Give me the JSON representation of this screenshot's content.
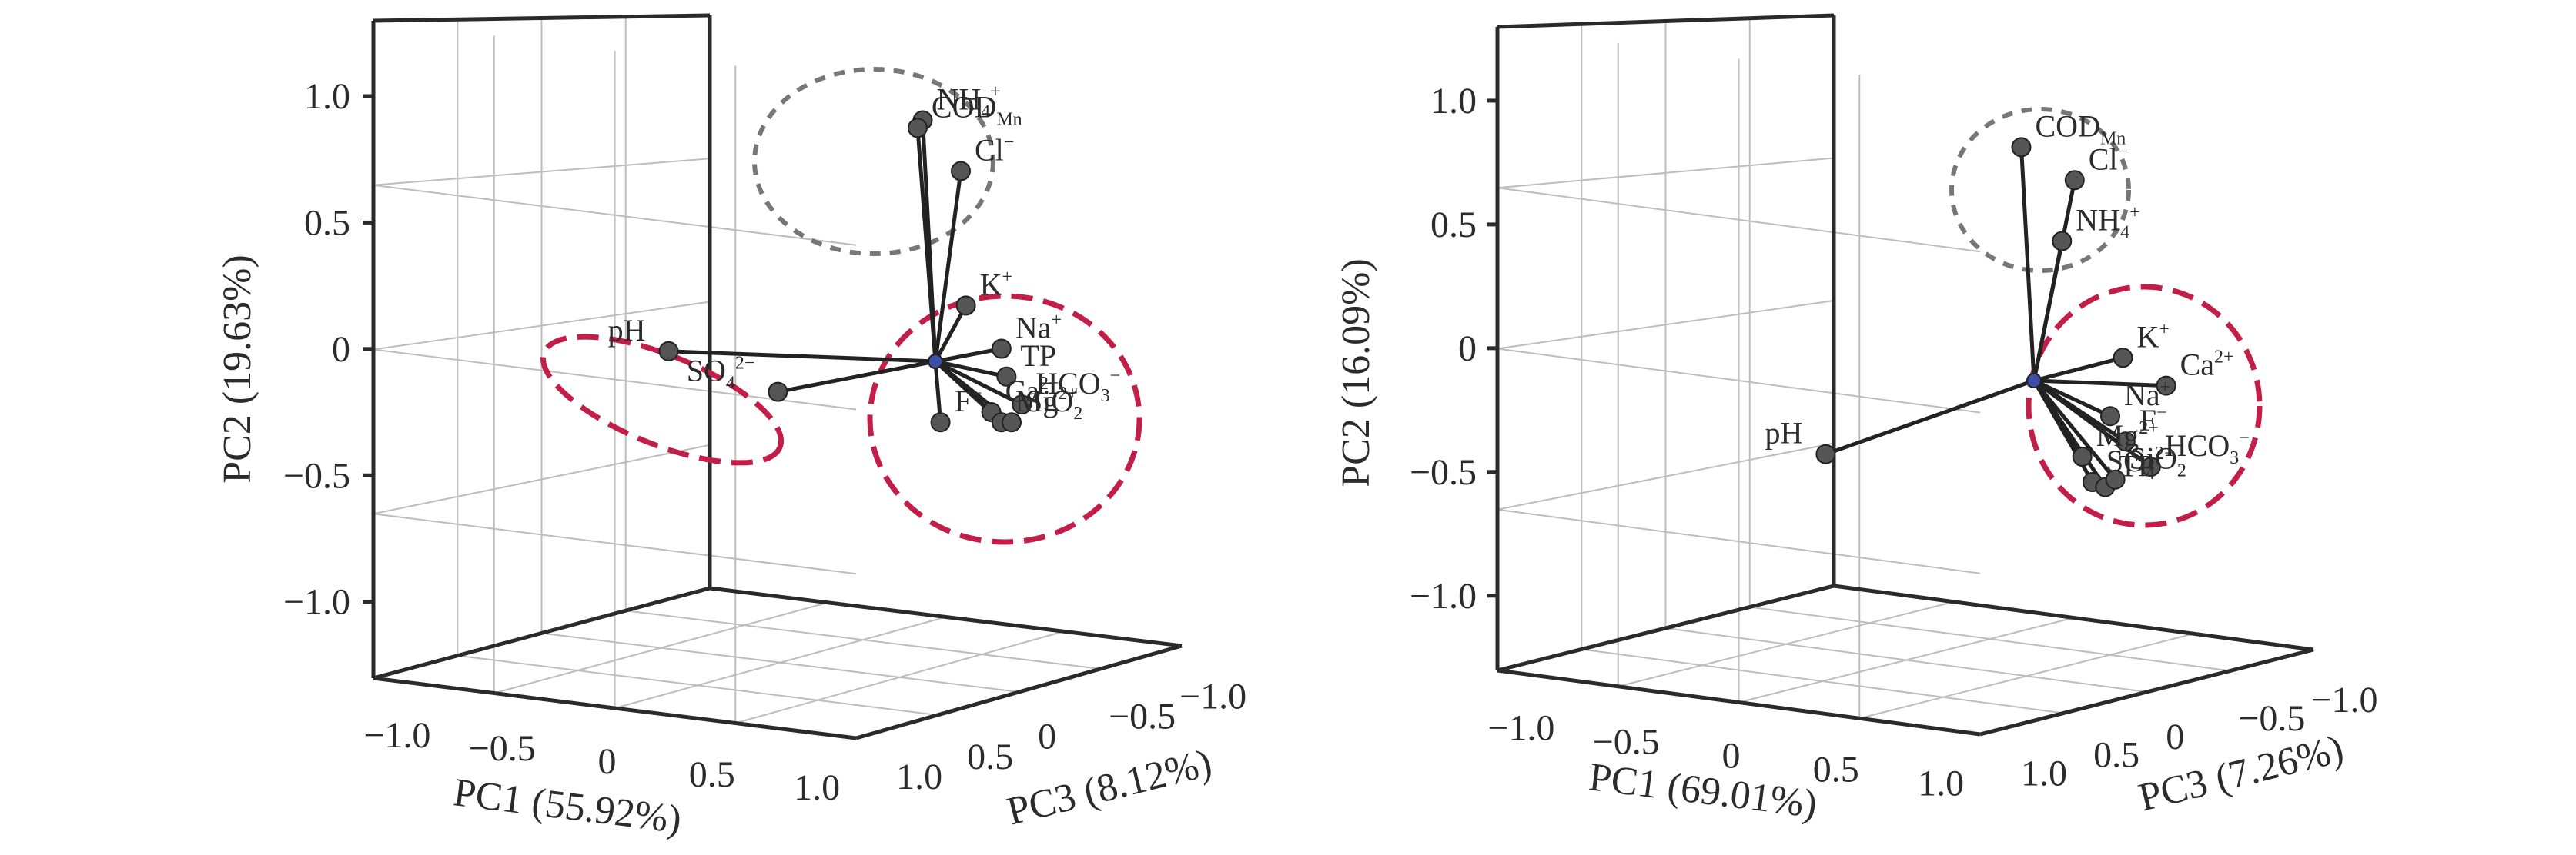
{
  "chart_data": [
    {
      "type": "scatter",
      "projection": "3d-biplot",
      "xlabel": "PC1 (55.92%)",
      "ylabel": "PC2 (19.63%)",
      "zlabel": "PC3 (8.12%)",
      "xlim": [
        -1.0,
        1.0
      ],
      "ylim": [
        -1.0,
        1.0
      ],
      "zlim": [
        -1.0,
        1.0
      ],
      "ticks": {
        "x": [
          "−1.0",
          "−0.5",
          "0",
          "0.5",
          "1.0"
        ],
        "y": [
          "−1.0",
          "−0.5",
          "0",
          "0.5",
          "1.0"
        ],
        "z": [
          "1.0",
          "0.5",
          "0",
          "−0.5",
          "−1.0"
        ]
      },
      "grid": true,
      "points": [
        {
          "label": "NH",
          "sup": "+",
          "sub": "4",
          "x": -0.05,
          "y": 0.95,
          "z": 0.0
        },
        {
          "label": "COD",
          "sub": "Mn",
          "x": -0.07,
          "y": 0.92,
          "z": 0.0
        },
        {
          "label": "Cl",
          "sup": "−",
          "x": 0.1,
          "y": 0.75,
          "z": 0.0
        },
        {
          "label": "K",
          "sup": "+",
          "x": 0.12,
          "y": 0.22,
          "z": 0.0
        },
        {
          "label": "Na",
          "sup": "+",
          "x": 0.26,
          "y": 0.05,
          "z": 0.0
        },
        {
          "label": "TP",
          "x": 0.28,
          "y": -0.06,
          "z": 0.0
        },
        {
          "label": "HCO",
          "sup": "−",
          "sub": "3",
          "x": 0.34,
          "y": -0.17,
          "z": 0.0
        },
        {
          "label": "Ca",
          "sup": "2+",
          "x": 0.22,
          "y": -0.2,
          "z": 0.0
        },
        {
          "label": "Mg",
          "sup": "2+",
          "x": 0.26,
          "y": -0.24,
          "z": 0.0
        },
        {
          "label": "SiO",
          "sub": "2",
          "x": 0.3,
          "y": -0.24,
          "z": 0.0
        },
        {
          "label": "F",
          "sup": "−",
          "x": 0.02,
          "y": -0.24,
          "z": 0.0
        },
        {
          "label": "SO",
          "sup": "2−",
          "sub": "4",
          "x": -0.62,
          "y": -0.12,
          "z": 0.0
        },
        {
          "label": "pH",
          "x": -1.05,
          "y": 0.04,
          "z": 0.0
        }
      ],
      "annotations": {
        "dashed_group_colors": [
          "#777777",
          "#c21e48",
          "#c21e48"
        ]
      }
    },
    {
      "type": "scatter",
      "projection": "3d-biplot",
      "xlabel": "PC1 (69.01%)",
      "ylabel": "PC2 (16.09%)",
      "zlabel": "PC3 (7.26%)",
      "xlim": [
        -1.0,
        1.0
      ],
      "ylim": [
        -1.0,
        1.0
      ],
      "zlim": [
        -1.0,
        1.0
      ],
      "ticks": {
        "x": [
          "−1.0",
          "−0.5",
          "0",
          "0.5",
          "1.0"
        ],
        "y": [
          "−1.0",
          "−0.5",
          "0",
          "0.5",
          "1.0"
        ],
        "z": [
          "1.0",
          "0.5",
          "0",
          "−0.5",
          "−1.0"
        ]
      },
      "grid": true,
      "points": [
        {
          "label": "COD",
          "sub": "Mn",
          "x": -0.05,
          "y": 0.92,
          "z": 0.0
        },
        {
          "label": "Cl",
          "sup": "−",
          "x": 0.16,
          "y": 0.79,
          "z": 0.0
        },
        {
          "label": "NH",
          "sup": "+",
          "sub": "4",
          "x": 0.11,
          "y": 0.55,
          "z": 0.0
        },
        {
          "label": "K",
          "sup": "+",
          "x": 0.35,
          "y": 0.09,
          "z": 0.0
        },
        {
          "label": "Ca",
          "sup": "2+",
          "x": 0.52,
          "y": -0.02,
          "z": 0.0
        },
        {
          "label": "Na",
          "sup": "+",
          "x": 0.3,
          "y": -0.14,
          "z": 0.0
        },
        {
          "label": "F",
          "sup": "−",
          "x": 0.36,
          "y": -0.24,
          "z": 0.0
        },
        {
          "label": "HCO",
          "sup": "−",
          "sub": "3",
          "x": 0.46,
          "y": -0.34,
          "z": 0.0
        },
        {
          "label": "Mg",
          "sup": "2+",
          "x": 0.19,
          "y": -0.3,
          "z": 0.0
        },
        {
          "label": "SO",
          "sup": "2−",
          "sub": "4",
          "x": 0.23,
          "y": -0.4,
          "z": 0.0
        },
        {
          "label": "TP",
          "x": 0.28,
          "y": -0.42,
          "z": 0.0
        },
        {
          "label": "SiO",
          "sub": "2",
          "x": 0.32,
          "y": -0.39,
          "z": 0.0
        },
        {
          "label": "pH",
          "x": -0.82,
          "y": -0.29,
          "z": 0.0
        }
      ],
      "annotations": {
        "dashed_group_colors": [
          "#777777",
          "#c21e48"
        ]
      }
    }
  ]
}
